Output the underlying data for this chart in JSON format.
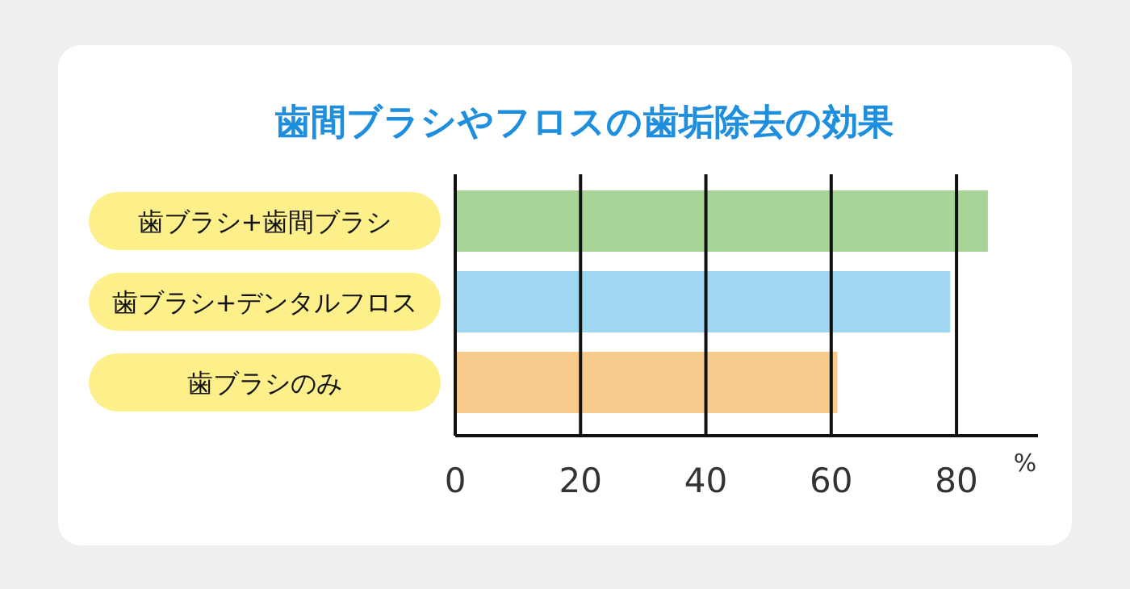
{
  "chart_data": {
    "type": "bar",
    "orientation": "horizontal",
    "title": "歯間ブラシやフロスの歯垢除去の効果",
    "xlabel": "%",
    "categories": [
      "歯ブラシ+歯間ブラシ",
      "歯ブラシ+デンタルフロス",
      "歯ブラシのみ"
    ],
    "values": [
      85,
      79,
      61
    ],
    "colors": [
      "#a8d498",
      "#a0d8f4",
      "#f6cb8b"
    ],
    "xlim": [
      0,
      93
    ],
    "xticks": [
      0,
      20,
      40,
      60,
      80
    ],
    "grid": "x"
  }
}
